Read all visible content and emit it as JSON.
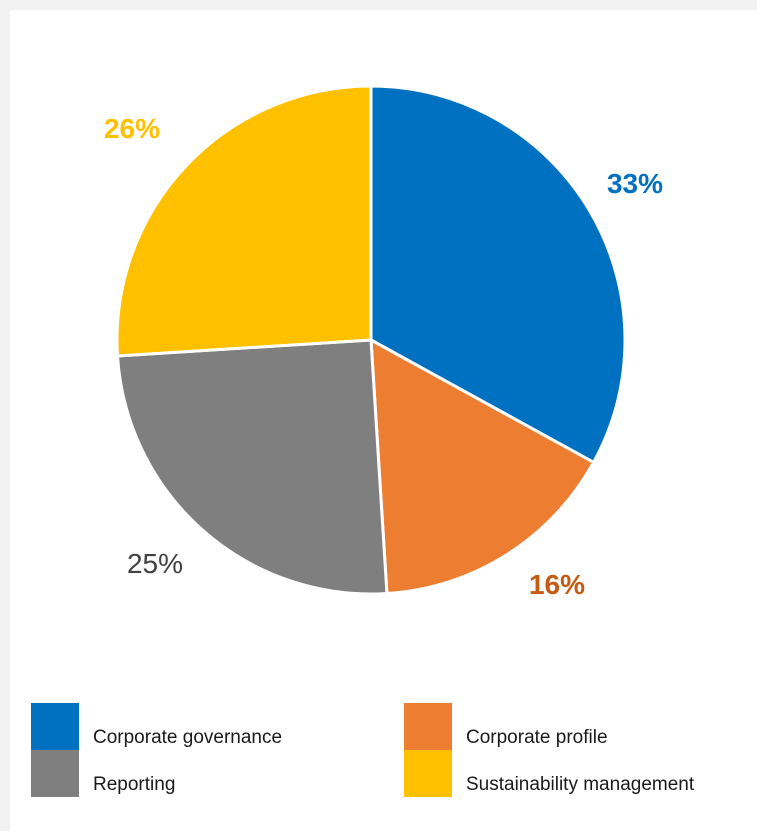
{
  "chart_data": {
    "type": "pie",
    "categories": [
      "Corporate governance",
      "Corporate profile",
      "Reporting",
      "Sustainability management"
    ],
    "values": [
      33,
      16,
      25,
      26
    ],
    "value_labels": [
      "33%",
      "16%",
      "25%",
      "26%"
    ],
    "colors": [
      "#0070c0",
      "#ed7d31",
      "#7f7f7f",
      "#ffc000"
    ],
    "label_colors": [
      "#0070c0",
      "#c55a11",
      "#404040",
      "#ffc000"
    ],
    "legend_placement": "bottom"
  },
  "legend": {
    "items": [
      {
        "label": "Corporate governance",
        "color": "#0070c0"
      },
      {
        "label": "Corporate profile",
        "color": "#ed7d31"
      },
      {
        "label": "Reporting",
        "color": "#7f7f7f"
      },
      {
        "label": "Sustainability management",
        "color": "#ffc000"
      }
    ]
  }
}
